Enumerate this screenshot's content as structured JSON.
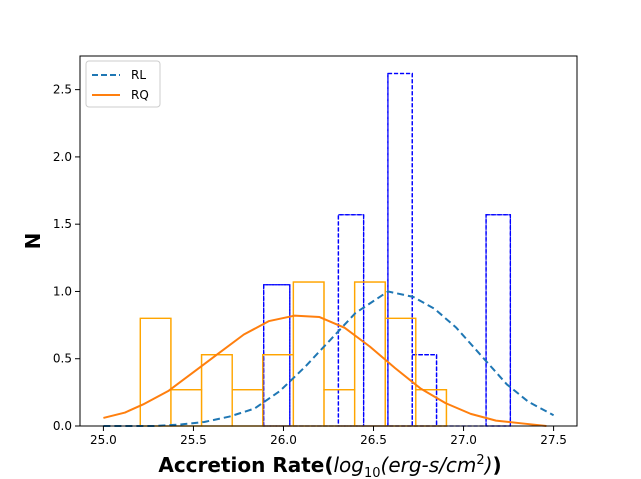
{
  "chart_data": {
    "type": "histogram+line",
    "xlabel": {
      "prefix": "Accretion Rate(",
      "log": "log",
      "log_sub": "10",
      "units_pre": "(erg-s/cm",
      "units_sup": "2",
      "units_post": ")",
      "suffix": ")"
    },
    "ylabel": "N",
    "xlim": [
      24.87,
      27.63
    ],
    "ylim": [
      0.0,
      2.75
    ],
    "xticks": [
      25.0,
      25.5,
      26.0,
      26.5,
      27.0,
      27.5
    ],
    "yticks": [
      0.0,
      0.5,
      1.0,
      1.5,
      2.0,
      2.5
    ],
    "xtick_labels": [
      "25.0",
      "25.5",
      "26.0",
      "26.5",
      "27.0",
      "27.5"
    ],
    "ytick_labels": [
      "0.0",
      "0.5",
      "1.0",
      "1.5",
      "2.0",
      "2.5"
    ],
    "legend": {
      "position": "upper-left",
      "entries": [
        {
          "label": "RL",
          "color": "#1f77b4",
          "style": "dashed"
        },
        {
          "label": "RQ",
          "color": "#ff7f0e",
          "style": "solid"
        }
      ]
    },
    "histograms": [
      {
        "name": "RL",
        "color": "#0000ff",
        "style": "dashed",
        "bin_edges": [
          25.89,
          26.035,
          26.17,
          26.305,
          26.445,
          26.58,
          26.715,
          26.85,
          26.99,
          27.125,
          27.26
        ],
        "values": [
          1.05,
          0.0,
          0.0,
          1.57,
          0.0,
          2.62,
          0.53,
          0.0,
          0.0,
          1.57
        ]
      },
      {
        "name": "RQ",
        "color": "#ffa500",
        "style": "solid",
        "bin_edges": [
          25.205,
          25.375,
          25.545,
          25.715,
          25.885,
          26.055,
          26.225,
          26.395,
          26.565,
          26.735,
          26.905
        ],
        "values": [
          0.8,
          0.27,
          0.53,
          0.27,
          0.53,
          1.07,
          0.27,
          1.07,
          0.8,
          0.27
        ]
      }
    ],
    "series": [
      {
        "name": "RL",
        "color": "#1f77b4",
        "style": "dashed",
        "x": [
          25.0,
          25.14,
          25.28,
          25.42,
          25.56,
          25.7,
          25.84,
          25.98,
          26.12,
          26.26,
          26.4,
          26.58,
          26.72,
          26.84,
          26.96,
          27.1,
          27.24,
          27.36,
          27.5
        ],
        "y": [
          0.0,
          0.0,
          0.0,
          0.01,
          0.03,
          0.07,
          0.13,
          0.26,
          0.44,
          0.64,
          0.84,
          1.0,
          0.96,
          0.87,
          0.73,
          0.52,
          0.31,
          0.18,
          0.08
        ]
      },
      {
        "name": "RQ",
        "color": "#ff7f0e",
        "style": "solid",
        "x": [
          25.0,
          25.12,
          25.22,
          25.36,
          25.5,
          25.64,
          25.78,
          25.92,
          26.06,
          26.2,
          26.34,
          26.48,
          26.62,
          26.76,
          26.9,
          27.04,
          27.18,
          27.32,
          27.46
        ],
        "y": [
          0.06,
          0.1,
          0.16,
          0.26,
          0.4,
          0.54,
          0.68,
          0.78,
          0.82,
          0.81,
          0.73,
          0.59,
          0.43,
          0.28,
          0.17,
          0.09,
          0.04,
          0.02,
          0.0
        ]
      }
    ]
  }
}
